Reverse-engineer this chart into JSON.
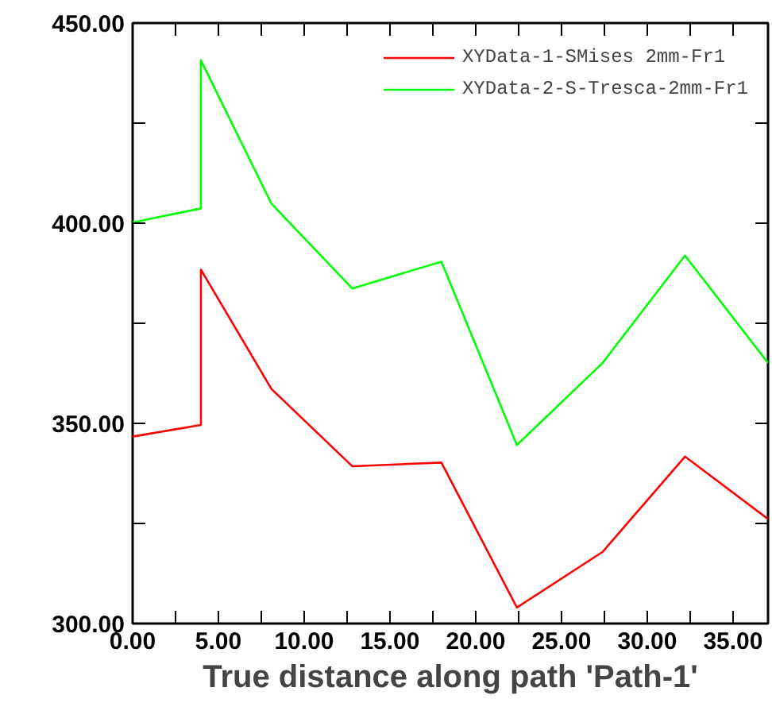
{
  "chart_data": {
    "type": "line",
    "xlabel": "True distance along path 'Path-1'",
    "xlim": [
      0,
      37.04
    ],
    "ylim": [
      300,
      450
    ],
    "xticks": [
      {
        "value": 0,
        "label": "0.00"
      },
      {
        "value": 2.5,
        "label": null
      },
      {
        "value": 5,
        "label": "5.00"
      },
      {
        "value": 7.5,
        "label": null
      },
      {
        "value": 10,
        "label": "10.00"
      },
      {
        "value": 12.5,
        "label": null
      },
      {
        "value": 15,
        "label": "15.00"
      },
      {
        "value": 17.5,
        "label": null
      },
      {
        "value": 20,
        "label": "20.00"
      },
      {
        "value": 22.5,
        "label": null
      },
      {
        "value": 25,
        "label": "25.00"
      },
      {
        "value": 27.5,
        "label": null
      },
      {
        "value": 30,
        "label": "30.00"
      },
      {
        "value": 32.5,
        "label": null
      },
      {
        "value": 35,
        "label": "35.00"
      }
    ],
    "yticks": [
      {
        "value": 300,
        "label": "300.00"
      },
      {
        "value": 325,
        "label": null
      },
      {
        "value": 350,
        "label": "350.00"
      },
      {
        "value": 375,
        "label": null
      },
      {
        "value": 400,
        "label": "400.00"
      },
      {
        "value": 425,
        "label": null
      },
      {
        "value": 450,
        "label": "450.00"
      }
    ],
    "grid": false,
    "legend": "top right",
    "marker": "none",
    "line_style": "solid",
    "x": [
      0,
      3.98,
      3.98,
      8.09,
      12.8,
      18.0,
      22.4,
      27.4,
      32.2,
      37.04
    ],
    "series": [
      {
        "name": "XYData-1-SMises 2mm-Fr1",
        "color": "#ff0000",
        "values": [
          346.7,
          349.6,
          388.4,
          358.6,
          339.3,
          340.2,
          304.0,
          317.9,
          341.7,
          326.1
        ]
      },
      {
        "name": "XYData-2-S-Tresca-2mm-Fr1",
        "color": "#00ff00",
        "values": [
          400.2,
          403.7,
          440.7,
          404.9,
          383.7,
          390.4,
          344.6,
          365.1,
          391.9,
          365.1
        ]
      }
    ]
  }
}
